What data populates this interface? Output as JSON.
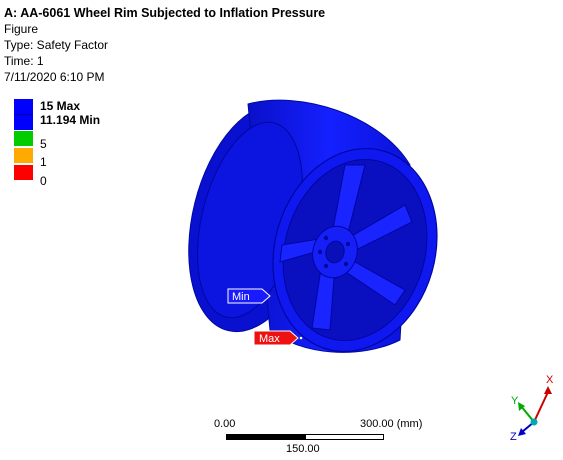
{
  "header": {
    "title": "A: AA-6061 Wheel Rim Subjected to Inflation Pressure",
    "line1": "Figure",
    "line2": "Type: Safety Factor",
    "line3": "Time: 1",
    "line4": "7/11/2020 6:10 PM"
  },
  "legend": {
    "items": [
      {
        "label": "15 Max",
        "color": "#0000ff",
        "bold": true
      },
      {
        "label": "11.194 Min",
        "color": "#0000ff",
        "bold": true
      },
      {
        "label": "5",
        "color": "#00cc00",
        "bold": false
      },
      {
        "label": "1",
        "color": "#ffaa00",
        "bold": false
      },
      {
        "label": "0",
        "color": "#ff0000",
        "bold": false
      }
    ]
  },
  "callouts": {
    "min_label": "Min",
    "max_label": "Max"
  },
  "scale_bar": {
    "left_label": "0.00",
    "mid_label": "150.00",
    "right_label": "300.00 (mm)"
  },
  "triad": {
    "x_label": "X",
    "y_label": "Y",
    "z_label": "Z"
  },
  "colors": {
    "model_blue": "#0a14e6",
    "min_callout": "#1a1aff",
    "max_callout": "#ee1111"
  }
}
